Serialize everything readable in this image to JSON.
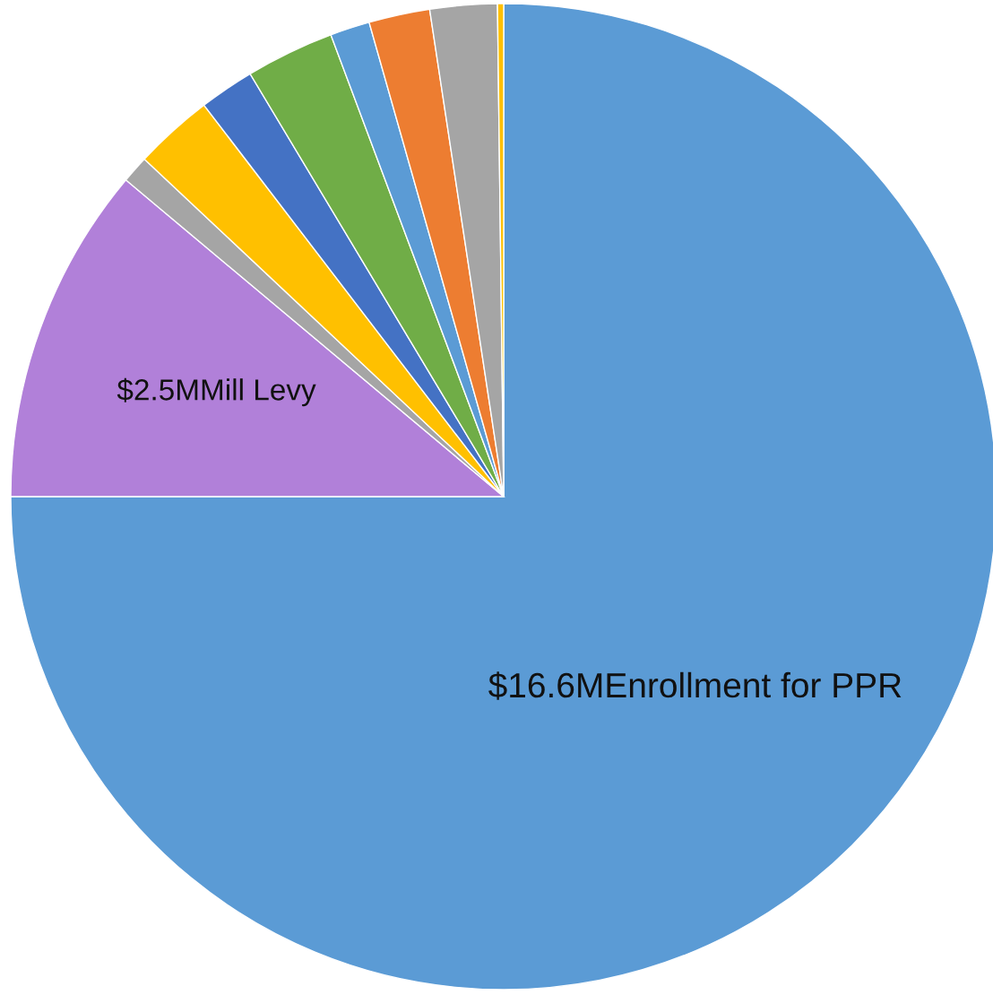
{
  "chart_data": {
    "type": "pie",
    "categories": [
      "$16.6MEnrollment for PPR",
      "$2.5MMill Levy",
      null,
      null,
      null,
      null,
      null,
      null,
      null,
      null
    ],
    "values": [
      75,
      11.1,
      0.9,
      2.6,
      1.8,
      2.9,
      1.3,
      2.0,
      2.2,
      0.2
    ],
    "colors": [
      "#5b9bd5",
      "#b180d9",
      "#a5a5a5",
      "#ffc000",
      "#4472c4",
      "#70ad47",
      "#5b9bd5",
      "#ed7d31",
      "#a5a5a5",
      "#ffc000"
    ],
    "legend": false
  }
}
